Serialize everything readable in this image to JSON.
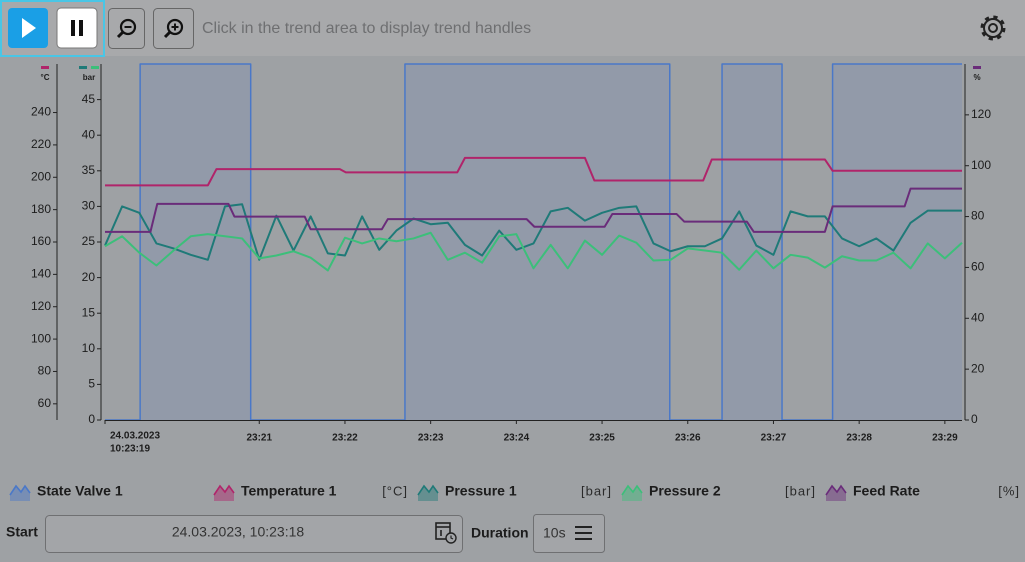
{
  "toolbar": {
    "hint": "Click in the trend area to display trend handles"
  },
  "chart_data": {
    "type": "line",
    "xlim": [
      19.2,
      29.2
    ],
    "x_start_label": {
      "date": "24.03.2023",
      "time": "10:23:19"
    },
    "xticks": [
      {
        "value": 21,
        "label": "23:21"
      },
      {
        "value": 22,
        "label": "23:22"
      },
      {
        "value": 23,
        "label": "23:23"
      },
      {
        "value": 24,
        "label": "23:24"
      },
      {
        "value": 25,
        "label": "23:25"
      },
      {
        "value": 26,
        "label": "23:26"
      },
      {
        "value": 27,
        "label": "23:27"
      },
      {
        "value": 28,
        "label": "23:28"
      },
      {
        "value": 29,
        "label": "23:29"
      }
    ],
    "y_axes": [
      {
        "label": "°C",
        "ylim": [
          50,
          270
        ],
        "yticks": [
          60,
          80,
          100,
          120,
          140,
          160,
          180,
          200,
          220,
          240
        ]
      },
      {
        "label": "bar",
        "ylim": [
          0,
          50
        ],
        "yticks": [
          0,
          5,
          10,
          15,
          20,
          25,
          30,
          35,
          40,
          45
        ]
      },
      {
        "label": "%",
        "ylim": [
          0,
          140
        ],
        "yticks": [
          0,
          20,
          40,
          60,
          80,
          100,
          120
        ]
      }
    ],
    "series": [
      {
        "name": "State Valve 1",
        "color": "#4a78c8",
        "area": true,
        "ylim": [
          0,
          1
        ],
        "x": [
          19.2,
          19.61,
          19.61,
          20.9,
          20.9,
          22.7,
          22.7,
          25.79,
          25.79,
          26.4,
          26.4,
          27.1,
          27.1,
          27.69,
          27.69,
          29.2
        ],
        "values": [
          0,
          0,
          1,
          1,
          0,
          0,
          1,
          1,
          0,
          0,
          1,
          1,
          0,
          0,
          1,
          1
        ]
      },
      {
        "name": "Temperature 1",
        "unit": "[°C]",
        "color": "#b0246a",
        "axis": 0,
        "x": [
          19.2,
          20.4,
          20.5,
          21.94,
          22.01,
          23.31,
          23.4,
          24.8,
          24.91,
          26.18,
          26.28,
          27.6,
          27.69,
          29.2
        ],
        "values": [
          195,
          195,
          205,
          205,
          203,
          203,
          212,
          212,
          198,
          198,
          211,
          211,
          204,
          204
        ]
      },
      {
        "name": "Pressure 1",
        "unit": "[bar]",
        "color": "#1f7a78",
        "axis": 1,
        "x": [
          19.2,
          19.4,
          19.6,
          19.8,
          20,
          20.2,
          20.4,
          20.6,
          20.8,
          21,
          21.2,
          21.4,
          21.6,
          21.8,
          22,
          22.2,
          22.4,
          22.6,
          22.8,
          23,
          23.2,
          23.4,
          23.6,
          23.8,
          24,
          24.2,
          24.4,
          24.6,
          24.8,
          25,
          25.2,
          25.4,
          25.6,
          25.8,
          26,
          26.2,
          26.4,
          26.6,
          26.8,
          27,
          27.2,
          27.4,
          27.6,
          27.8,
          28,
          28.2,
          28.4,
          28.6,
          28.8,
          29,
          29.2
        ],
        "values": [
          24.5,
          30,
          29.1,
          24.8,
          24.1,
          23.2,
          22.5,
          30,
          30.3,
          22.5,
          28.7,
          23.8,
          28.6,
          23.4,
          23.1,
          28.6,
          23.9,
          26.6,
          28.3,
          27.5,
          27.7,
          24.6,
          23.1,
          26.6,
          23.9,
          24.8,
          29.3,
          29.8,
          28,
          29.1,
          29.8,
          30,
          24.8,
          23.7,
          24.4,
          24.4,
          25.5,
          29.3,
          24.5,
          23.2,
          29.3,
          28.6,
          28.6,
          25.5,
          24.4,
          25.5,
          23.8,
          27.7,
          29.4,
          29.4,
          29.4
        ]
      },
      {
        "name": "Pressure 2",
        "unit": "[bar]",
        "color": "#3cbf7a",
        "axis": 1,
        "x": [
          19.2,
          19.4,
          19.6,
          19.8,
          20,
          20.2,
          20.4,
          20.6,
          20.8,
          21,
          21.2,
          21.4,
          21.6,
          21.8,
          22,
          22.2,
          22.4,
          22.6,
          22.8,
          23,
          23.2,
          23.4,
          23.6,
          23.8,
          24,
          24.2,
          24.4,
          24.6,
          24.8,
          25,
          25.2,
          25.4,
          25.6,
          25.8,
          26,
          26.2,
          26.4,
          26.6,
          26.8,
          27,
          27.2,
          27.4,
          27.6,
          27.8,
          28,
          28.2,
          28.4,
          28.6,
          28.8,
          29,
          29.2
        ],
        "values": [
          24.4,
          25.8,
          23.5,
          21.7,
          23.8,
          25.8,
          26.1,
          25.8,
          25.5,
          22.7,
          23.1,
          23.7,
          22.8,
          21,
          25.6,
          24.8,
          25.5,
          25.1,
          25.5,
          26.3,
          22.5,
          23.5,
          22.1,
          25.8,
          26.1,
          21.3,
          24.6,
          21.3,
          25.2,
          23.2,
          25.9,
          24.9,
          22.4,
          22.5,
          24.1,
          23.8,
          23.5,
          21.1,
          23.8,
          21.3,
          23.2,
          22.8,
          21.4,
          23,
          22.4,
          22.4,
          23.5,
          21.3,
          24.8,
          22.7,
          24.9
        ]
      },
      {
        "name": "Feed Rate",
        "unit": "[%]",
        "color": "#6a2c7a",
        "axis": 2,
        "x": [
          19.2,
          19.73,
          19.81,
          20.64,
          20.71,
          21.53,
          21.6,
          22.43,
          22.5,
          24.12,
          24.21,
          25.03,
          25.12,
          25.87,
          25.96,
          26.69,
          26.77,
          27.6,
          27.69,
          28.53,
          28.6,
          29.2
        ],
        "values": [
          74,
          74,
          85,
          85,
          80,
          80,
          75,
          75,
          79,
          79,
          76,
          76,
          81,
          81,
          78,
          78,
          74,
          74,
          84,
          84,
          91,
          91
        ]
      }
    ]
  },
  "footer": {
    "start_label": "Start",
    "start_value": "24.03.2023, 10:23:18",
    "duration_label": "Duration",
    "duration_value": "10s"
  }
}
